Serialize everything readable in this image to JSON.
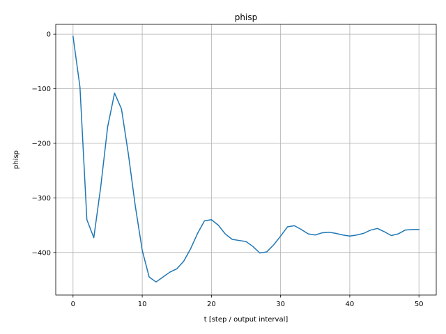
{
  "chart_data": {
    "type": "line",
    "title": "phisp",
    "xlabel": "t [step / output interval]",
    "ylabel": "phisp",
    "xlim": [
      -2.5,
      52.5
    ],
    "ylim": [
      -478,
      18
    ],
    "xticks": [
      0,
      10,
      20,
      30,
      40,
      50
    ],
    "yticks": [
      0,
      -100,
      -200,
      -300,
      -400
    ],
    "ytick_labels": [
      "0",
      "−100",
      "−200",
      "−300",
      "−400"
    ],
    "grid": true,
    "line_color": "#1f77b4",
    "series": [
      {
        "x": [
          0,
          1,
          2,
          3,
          4,
          5,
          6,
          7,
          8,
          9,
          10,
          11,
          12,
          13,
          14,
          15,
          16,
          17,
          18,
          19,
          20,
          21,
          22,
          23,
          24,
          25,
          26,
          27,
          28,
          29,
          30,
          31,
          32,
          33,
          34,
          35,
          36,
          37,
          38,
          39,
          40,
          41,
          42,
          43,
          44,
          45,
          46,
          47,
          48,
          49,
          50
        ],
        "values": [
          -4,
          -97,
          -340,
          -373,
          -280,
          -170,
          -108,
          -137,
          -220,
          -315,
          -396,
          -445,
          -454,
          -445,
          -436,
          -430,
          -416,
          -393,
          -365,
          -342,
          -340,
          -350,
          -366,
          -376,
          -378,
          -380,
          -389,
          -401,
          -399,
          -386,
          -370,
          -353,
          -351,
          -358,
          -366,
          -368,
          -364,
          -363,
          -365,
          -368,
          -370,
          -368,
          -365,
          -359,
          -356,
          -362,
          -369,
          -366,
          -359,
          -358,
          -358
        ]
      }
    ]
  }
}
